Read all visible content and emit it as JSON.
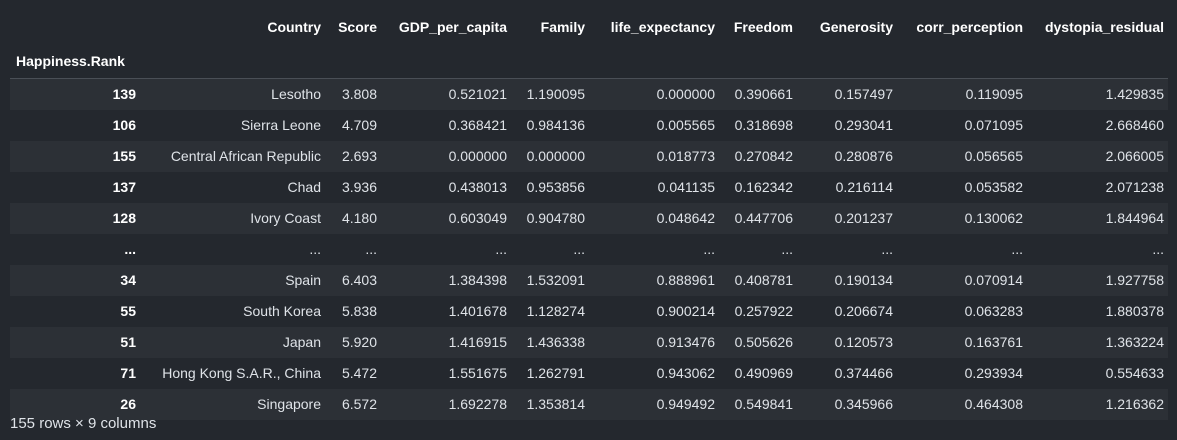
{
  "table": {
    "index_name": "Happiness.Rank",
    "columns": [
      "Country",
      "Score",
      "GDP_per_capita",
      "Family",
      "life_expectancy",
      "Freedom",
      "Generosity",
      "corr_perception",
      "dystopia_residual"
    ],
    "rows": [
      {
        "index": "139",
        "cells": [
          "Lesotho",
          "3.808",
          "0.521021",
          "1.190095",
          "0.000000",
          "0.390661",
          "0.157497",
          "0.119095",
          "1.429835"
        ]
      },
      {
        "index": "106",
        "cells": [
          "Sierra Leone",
          "4.709",
          "0.368421",
          "0.984136",
          "0.005565",
          "0.318698",
          "0.293041",
          "0.071095",
          "2.668460"
        ]
      },
      {
        "index": "155",
        "cells": [
          "Central African Republic",
          "2.693",
          "0.000000",
          "0.000000",
          "0.018773",
          "0.270842",
          "0.280876",
          "0.056565",
          "2.066005"
        ]
      },
      {
        "index": "137",
        "cells": [
          "Chad",
          "3.936",
          "0.438013",
          "0.953856",
          "0.041135",
          "0.162342",
          "0.216114",
          "0.053582",
          "2.071238"
        ]
      },
      {
        "index": "128",
        "cells": [
          "Ivory Coast",
          "4.180",
          "0.603049",
          "0.904780",
          "0.048642",
          "0.447706",
          "0.201237",
          "0.130062",
          "1.844964"
        ]
      },
      {
        "index": "...",
        "cells": [
          "...",
          "...",
          "...",
          "...",
          "...",
          "...",
          "...",
          "...",
          "..."
        ]
      },
      {
        "index": "34",
        "cells": [
          "Spain",
          "6.403",
          "1.384398",
          "1.532091",
          "0.888961",
          "0.408781",
          "0.190134",
          "0.070914",
          "1.927758"
        ]
      },
      {
        "index": "55",
        "cells": [
          "South Korea",
          "5.838",
          "1.401678",
          "1.128274",
          "0.900214",
          "0.257922",
          "0.206674",
          "0.063283",
          "1.880378"
        ]
      },
      {
        "index": "51",
        "cells": [
          "Japan",
          "5.920",
          "1.416915",
          "1.436338",
          "0.913476",
          "0.505626",
          "0.120573",
          "0.163761",
          "1.363224"
        ]
      },
      {
        "index": "71",
        "cells": [
          "Hong Kong S.A.R., China",
          "5.472",
          "1.551675",
          "1.262791",
          "0.943062",
          "0.490969",
          "0.374466",
          "0.293934",
          "0.554633"
        ]
      },
      {
        "index": "26",
        "cells": [
          "Singapore",
          "6.572",
          "1.692278",
          "1.353814",
          "0.949492",
          "0.549841",
          "0.345966",
          "0.464308",
          "1.216362"
        ]
      }
    ]
  },
  "footer": "155 rows × 9 columns"
}
